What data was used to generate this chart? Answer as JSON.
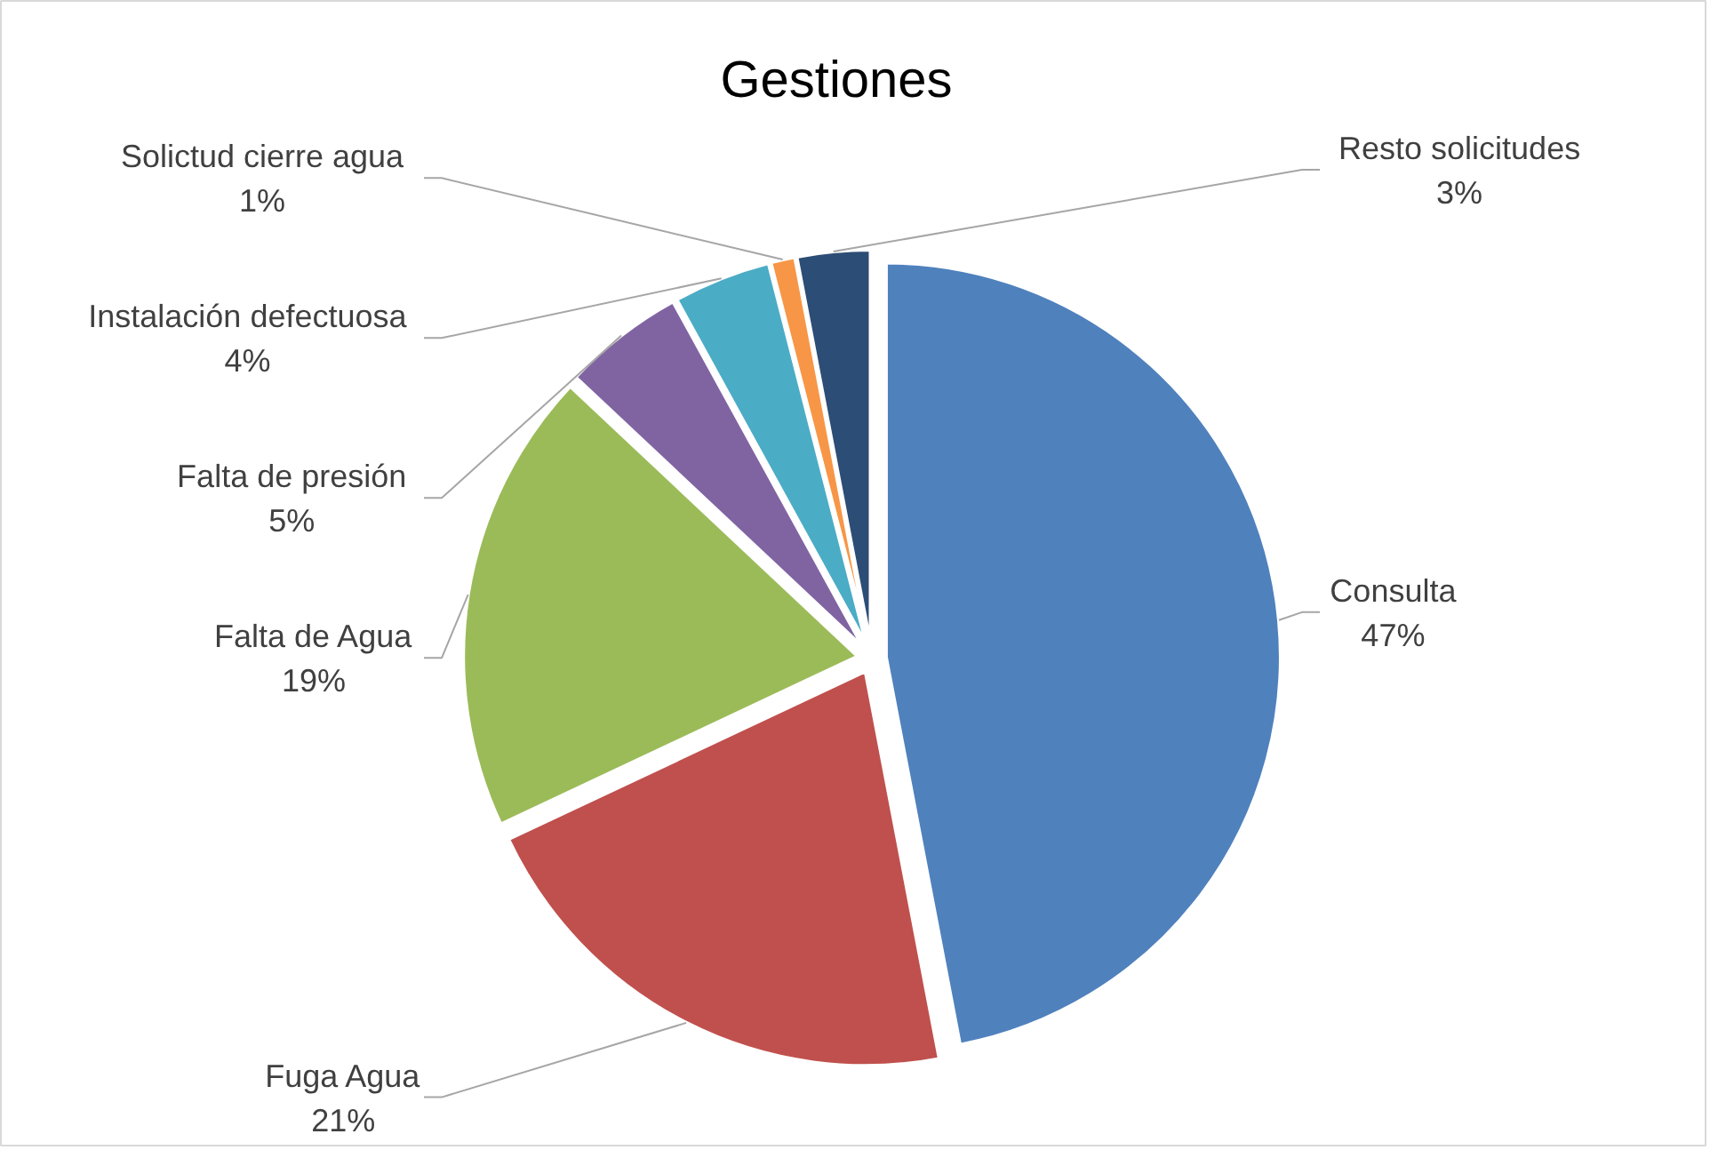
{
  "chart_data": {
    "type": "pie",
    "title": "Gestiones",
    "categories": [
      "Consulta",
      "Fuga Agua",
      "Falta de Agua",
      "Falta de presión",
      "Instalación defectuosa",
      "Solictud cierre agua",
      "Resto solicitudes"
    ],
    "values": [
      47,
      21,
      19,
      5,
      4,
      1,
      3
    ],
    "colors": [
      "#4f81bd",
      "#c0504d",
      "#9bbb59",
      "#8064a2",
      "#4bacc6",
      "#f79646",
      "#2c4d75"
    ],
    "value_labels": [
      "47%",
      "21%",
      "19%",
      "5%",
      "4%",
      "1%",
      "3%"
    ]
  }
}
